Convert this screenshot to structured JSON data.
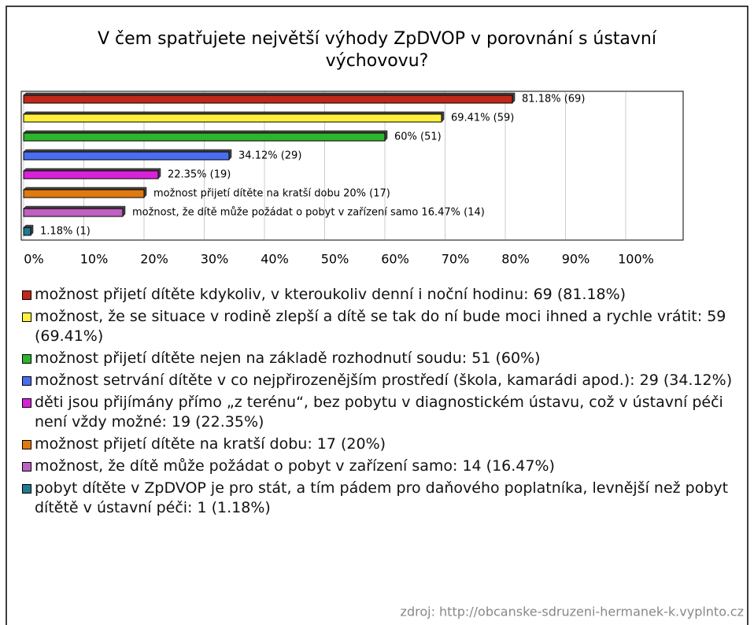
{
  "chart_data": {
    "type": "barh",
    "title": "V čem spatřujete největší výhody ZpDVOP v porovnání s ústavní výchovovu?",
    "categories": [
      "možnost přijetí dítěte kdykoliv, v kteroukoliv denní i noční hodinu: 69 (81.18%)",
      "možnost, že se situace v rodině zlepší a dítě se tak do ní bude moci ihned a rychle vrátit: 59 (69.41%)",
      "možnost přijetí dítěte nejen na základě rozhodnutí soudu: 51 (60%)",
      "možnost setrvání dítěte v co nejpřirozenějším prostředí (škola, kamarádi apod.): 29 (34.12%)",
      "děti jsou přijímány přímo „z terénu“, bez pobytu v diagnostickém ústavu, což v ústavní péči není vždy možné: 19 (22.35%)",
      "možnost přijetí dítěte na kratší dobu: 17 (20%)",
      "možnost, že dítě může požádat o pobyt v zařízení samo: 14 (16.47%)",
      "pobyt dítěte v ZpDVOP je pro stát, a tím pádem pro daňového poplatníka, levnější než pobyt dítětě v ústavní péči: 1 (1.18%)"
    ],
    "values": [
      81.18,
      69.41,
      60,
      34.12,
      22.35,
      20,
      16.47,
      1.18
    ],
    "value_labels": [
      "81.18% (69)",
      "69.41% (59)",
      "60% (51)",
      "34.12% (29)",
      "22.35% (19)",
      "možnost přijetí dítěte na kratší dobu 20% (17)",
      "možnost, že dítě může požádat o pobyt v zařízení samo 16.47% (14)",
      "1.18% (1)"
    ],
    "colors": [
      "#c0281a",
      "#fff03c",
      "#2db52d",
      "#4a6ef0",
      "#d822d8",
      "#e07a10",
      "#c060c0",
      "#207a90"
    ],
    "xlim": [
      0,
      100
    ],
    "xticks": [
      {
        "value": 0,
        "label": "0%"
      },
      {
        "value": 10,
        "label": "10%"
      },
      {
        "value": 20,
        "label": "20%"
      },
      {
        "value": 30,
        "label": "30%"
      },
      {
        "value": 40,
        "label": "40%"
      },
      {
        "value": 50,
        "label": "50%"
      },
      {
        "value": 60,
        "label": "60%"
      },
      {
        "value": 70,
        "label": "70%"
      },
      {
        "value": 80,
        "label": "80%"
      },
      {
        "value": 90,
        "label": "90%"
      },
      {
        "value": 100,
        "label": "100%"
      }
    ],
    "grid": true,
    "source": "zdroj: http://obcanske-sdruzeni-hermanek-k.vyplnto.cz"
  }
}
